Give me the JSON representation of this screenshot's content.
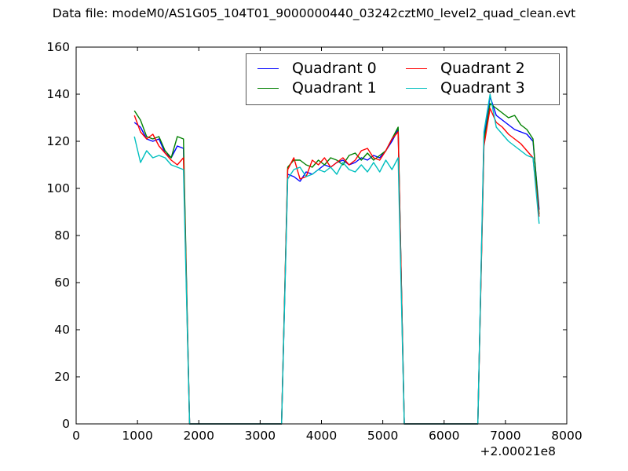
{
  "chart_data": {
    "type": "line",
    "title": "Data file: modeM0/AS1G05_104T01_9000000440_03242cztM0_level2_quad_clean.evt",
    "xlabel": "",
    "ylabel": "",
    "xlim": [
      0,
      8000
    ],
    "ylim": [
      0,
      160
    ],
    "xticks": [
      0,
      1000,
      2000,
      3000,
      4000,
      5000,
      6000,
      7000,
      8000
    ],
    "yticks": [
      0,
      20,
      40,
      60,
      80,
      100,
      120,
      140,
      160
    ],
    "x_offset_label": "+2.00021e8",
    "grid": false,
    "legend": {
      "position": "upper center",
      "columns": 2,
      "frame": true
    },
    "x": [
      950,
      1050,
      1150,
      1250,
      1350,
      1450,
      1550,
      1650,
      1750,
      1850,
      1950,
      2050,
      2150,
      2250,
      2350,
      2450,
      2550,
      2650,
      2750,
      2850,
      2950,
      3050,
      3150,
      3250,
      3350,
      3450,
      3550,
      3650,
      3750,
      3850,
      3950,
      4050,
      4150,
      4250,
      4350,
      4450,
      4550,
      4650,
      4750,
      4850,
      4950,
      5050,
      5150,
      5250,
      5350,
      5450,
      5550,
      5650,
      5750,
      5850,
      5950,
      6050,
      6150,
      6250,
      6350,
      6450,
      6550,
      6650,
      6750,
      6850,
      6950,
      7050,
      7150,
      7250,
      7350,
      7450,
      7550
    ],
    "series": [
      {
        "name": "Quadrant 0",
        "color": "#0000ff",
        "y": [
          128,
          126,
          121,
          120,
          121,
          115,
          113,
          118,
          117,
          0,
          0,
          0,
          0,
          0,
          0,
          0,
          0,
          0,
          0,
          0,
          0,
          0,
          0,
          0,
          0,
          106,
          105,
          103,
          107,
          106,
          108,
          110,
          109,
          111,
          112,
          110,
          111,
          113,
          112,
          114,
          113,
          116,
          120,
          125,
          0,
          0,
          0,
          0,
          0,
          0,
          0,
          0,
          0,
          0,
          0,
          0,
          0,
          122,
          139,
          131,
          129,
          127,
          125,
          124,
          123,
          120,
          91
        ]
      },
      {
        "name": "Quadrant 1",
        "color": "#008000",
        "y": [
          133,
          129,
          122,
          121,
          122,
          116,
          113,
          122,
          121,
          0,
          0,
          0,
          0,
          0,
          0,
          0,
          0,
          0,
          0,
          0,
          0,
          0,
          0,
          0,
          0,
          109,
          112,
          112,
          110,
          109,
          112,
          110,
          113,
          112,
          110,
          114,
          115,
          112,
          115,
          112,
          114,
          116,
          121,
          126,
          0,
          0,
          0,
          0,
          0,
          0,
          0,
          0,
          0,
          0,
          0,
          0,
          0,
          120,
          136,
          134,
          132,
          130,
          131,
          127,
          125,
          121,
          89
        ]
      },
      {
        "name": "Quadrant 2",
        "color": "#ff0000",
        "y": [
          131,
          124,
          121,
          123,
          118,
          115,
          112,
          110,
          113,
          0,
          0,
          0,
          0,
          0,
          0,
          0,
          0,
          0,
          0,
          0,
          0,
          0,
          0,
          0,
          0,
          108,
          113,
          104,
          105,
          112,
          110,
          113,
          109,
          111,
          113,
          110,
          112,
          116,
          117,
          113,
          112,
          116,
          121,
          124,
          0,
          0,
          0,
          0,
          0,
          0,
          0,
          0,
          0,
          0,
          0,
          0,
          0,
          118,
          134,
          128,
          126,
          123,
          121,
          119,
          116,
          113,
          88
        ]
      },
      {
        "name": "Quadrant 3",
        "color": "#00bfbf",
        "y": [
          122,
          111,
          116,
          113,
          114,
          113,
          110,
          109,
          108,
          0,
          0,
          0,
          0,
          0,
          0,
          0,
          0,
          0,
          0,
          0,
          0,
          0,
          0,
          0,
          0,
          104,
          108,
          109,
          105,
          106,
          108,
          107,
          109,
          106,
          111,
          108,
          107,
          110,
          107,
          111,
          107,
          112,
          108,
          113,
          0,
          0,
          0,
          0,
          0,
          0,
          0,
          0,
          0,
          0,
          0,
          0,
          0,
          124,
          140,
          126,
          123,
          120,
          118,
          116,
          114,
          113,
          85
        ]
      }
    ]
  }
}
